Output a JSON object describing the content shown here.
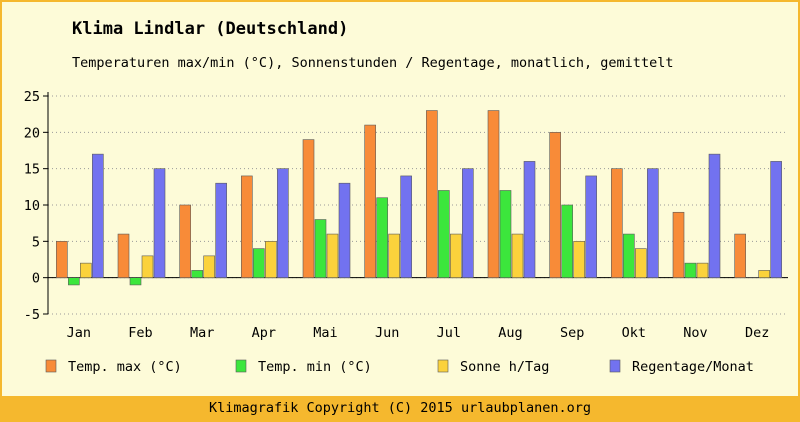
{
  "title": "Klima Lindlar (Deutschland)",
  "subtitle": "Temperaturen max/min (°C), Sonnenstunden / Regentage, monatlich, gemittelt",
  "footer": "Klimagrafik Copyright (C) 2015 urlaubplanen.org",
  "colors": {
    "background": "#fdfbd8",
    "frame": "#f5b82e"
  },
  "chart_data": {
    "type": "bar",
    "categories": [
      "Jan",
      "Feb",
      "Mar",
      "Apr",
      "Mai",
      "Jun",
      "Jul",
      "Aug",
      "Sep",
      "Okt",
      "Nov",
      "Dez"
    ],
    "ylim": [
      -5,
      25
    ],
    "yticks": [
      -5,
      0,
      5,
      10,
      15,
      20,
      25
    ],
    "grid": true,
    "legend_position": "bottom",
    "series": [
      {
        "name": "Temp. max (°C)",
        "color": "#f88b38",
        "values": [
          5,
          6,
          10,
          14,
          19,
          21,
          23,
          23,
          20,
          15,
          9,
          6
        ]
      },
      {
        "name": "Temp. min (°C)",
        "color": "#3ce63c",
        "values": [
          -1,
          -1,
          1,
          4,
          8,
          11,
          12,
          12,
          10,
          6,
          2,
          0
        ]
      },
      {
        "name": "Sonne h/Tag",
        "color": "#fbd23c",
        "values": [
          2,
          3,
          3,
          5,
          6,
          6,
          6,
          6,
          5,
          4,
          2,
          1
        ]
      },
      {
        "name": "Regentage/Monat",
        "color": "#7272f0",
        "values": [
          17,
          15,
          13,
          15,
          13,
          14,
          15,
          16,
          14,
          15,
          17,
          16
        ]
      }
    ]
  }
}
